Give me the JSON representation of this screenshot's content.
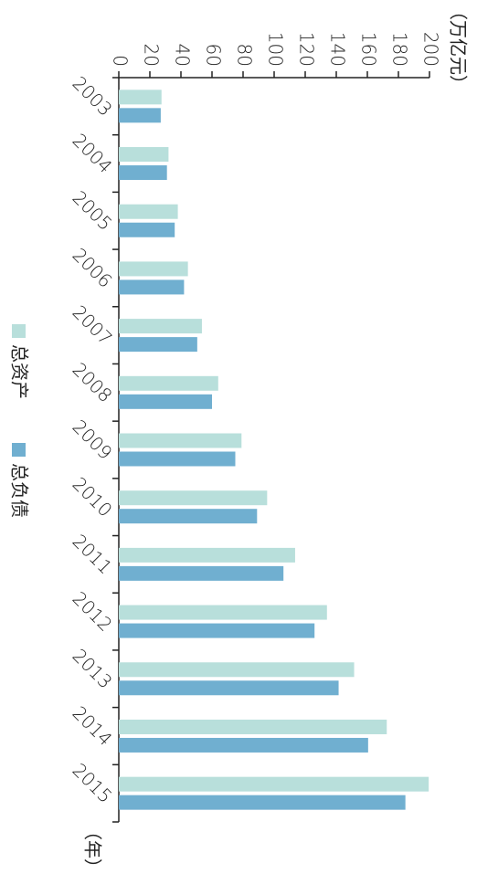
{
  "chart_data": {
    "type": "bar",
    "orientation": "horizontal",
    "unit_label": "（万亿元）",
    "category_axis_label": "（年）",
    "categories": [
      "2003",
      "2004",
      "2005",
      "2006",
      "2007",
      "2008",
      "2009",
      "2010",
      "2011",
      "2012",
      "2013",
      "2014",
      "2015"
    ],
    "series": [
      {
        "name": "总资产",
        "color": "#b8dfdb",
        "values": [
          27.5,
          32,
          38,
          44.5,
          53.5,
          64,
          79,
          95.5,
          113.5,
          134,
          151.5,
          172.5,
          199.5
        ]
      },
      {
        "name": "总负债",
        "color": "#70afd0",
        "values": [
          27,
          31,
          36,
          42,
          50.5,
          60,
          75,
          89,
          106,
          126,
          141.5,
          160.5,
          184.5
        ]
      }
    ],
    "ylim": [
      0,
      200
    ],
    "yticks": [
      0,
      20,
      40,
      60,
      80,
      100,
      120,
      140,
      160,
      180,
      200
    ],
    "grid": false
  }
}
